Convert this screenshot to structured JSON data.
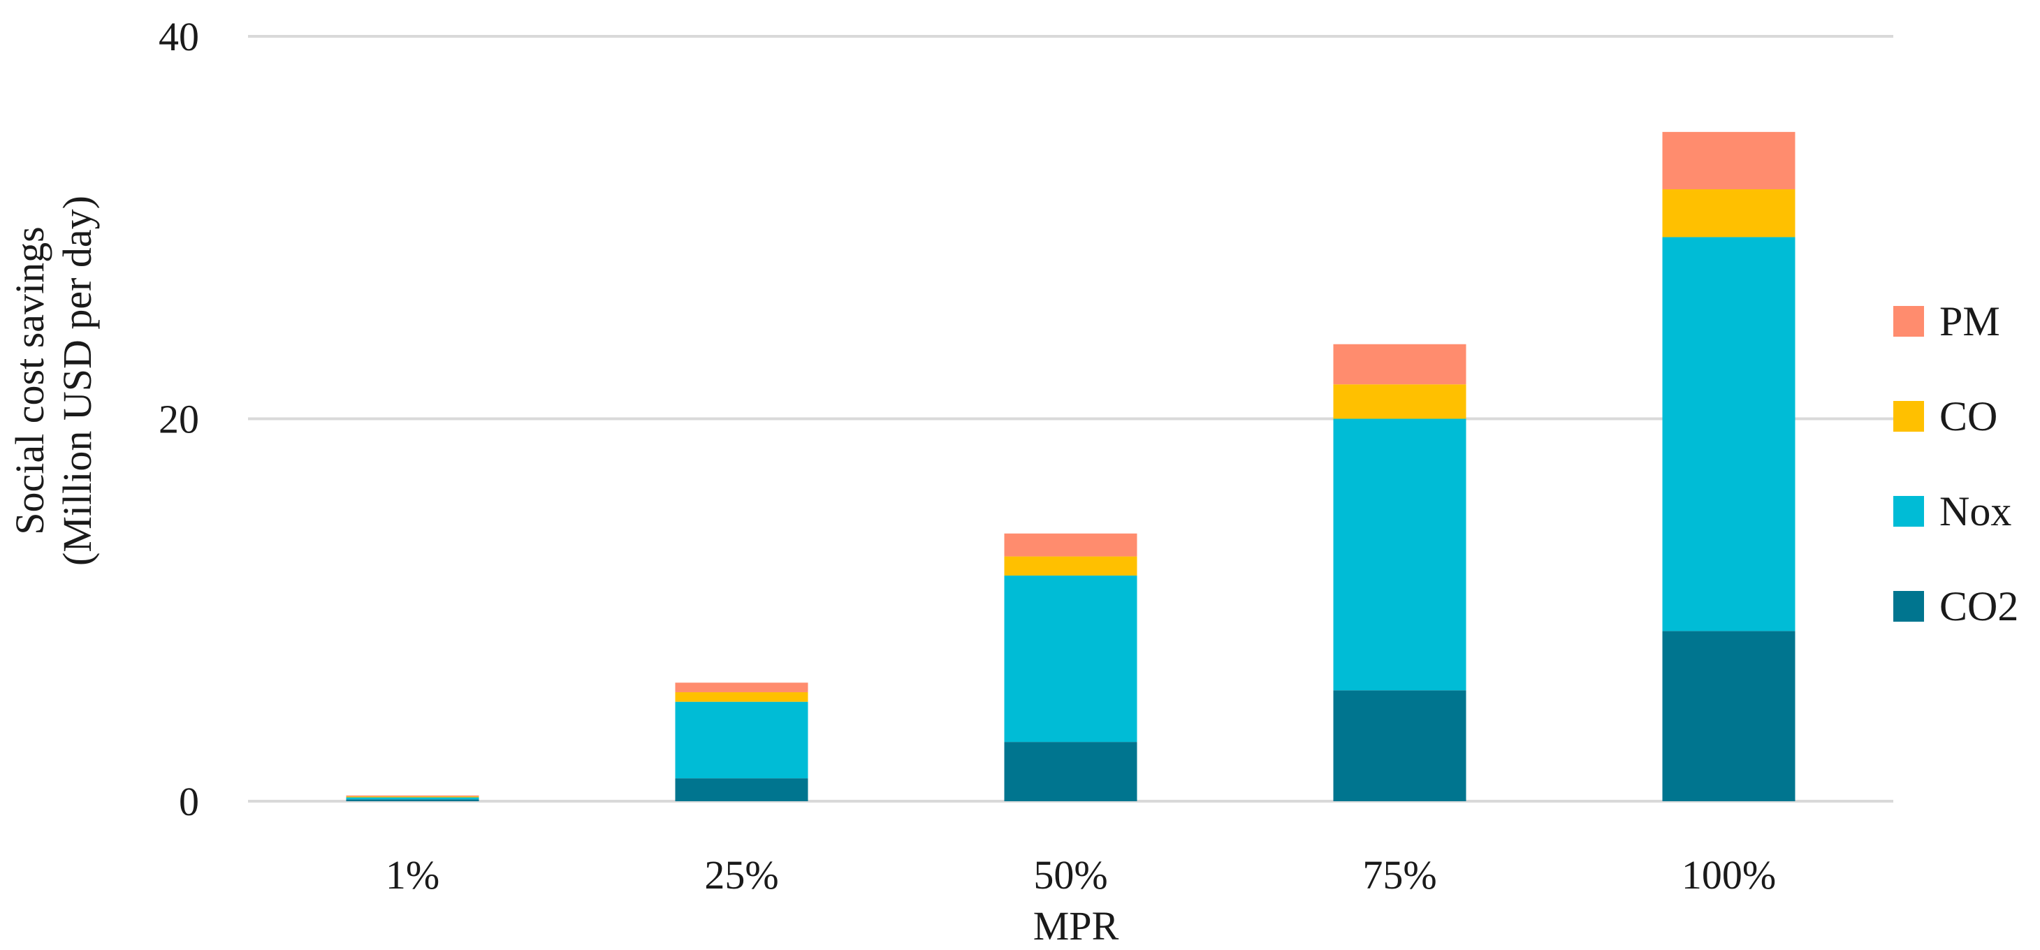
{
  "chart_data": {
    "type": "bar",
    "stacked": true,
    "categories": [
      "1%",
      "25%",
      "50%",
      "75%",
      "100%"
    ],
    "series": [
      {
        "name": "CO2",
        "values": [
          0.1,
          1.2,
          3.1,
          5.8,
          8.9
        ],
        "color": "#00758F"
      },
      {
        "name": "Nox",
        "values": [
          0.1,
          4.0,
          8.7,
          14.2,
          20.6
        ],
        "color": "#00BCD6"
      },
      {
        "name": "CO",
        "values": [
          0.05,
          0.5,
          1.0,
          1.8,
          2.5
        ],
        "color": "#FFC000"
      },
      {
        "name": "PM",
        "values": [
          0.05,
          0.5,
          1.2,
          2.1,
          3.0
        ],
        "color": "#FF8C6E"
      }
    ],
    "ylim": [
      0,
      40
    ],
    "yticks": [
      0,
      20,
      40
    ],
    "xlabel": "MPR",
    "ylabel_lines": [
      "Social cost savings",
      "(Million USD per day)"
    ],
    "legend_position": "right",
    "legend_order": [
      "PM",
      "CO",
      "Nox",
      "CO2"
    ],
    "grid": true
  }
}
